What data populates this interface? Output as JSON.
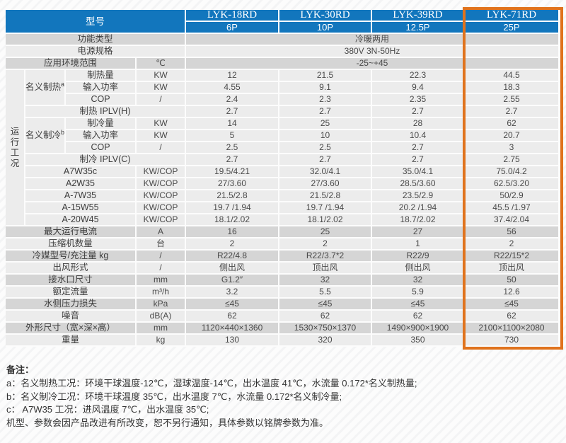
{
  "table": {
    "corner_label": "型号",
    "header_color": "#1276bd",
    "highlight_color": "#e0731d",
    "models": [
      {
        "name": "LYK-18RD",
        "capacity": "6P",
        "highlighted": false
      },
      {
        "name": "LYK-30RD",
        "capacity": "10P",
        "highlighted": false
      },
      {
        "name": "LYK-39RD",
        "capacity": "12.5P",
        "highlighted": false
      },
      {
        "name": "LYK-71RD",
        "capacity": "25P",
        "highlighted": true
      }
    ],
    "general_rows": [
      {
        "label": "功能类型",
        "unit": "",
        "merged_value": "冷暖两用",
        "dark": true
      },
      {
        "label": "电源规格",
        "unit": "",
        "merged_value": "380V 3N-50Hz",
        "dark": false
      },
      {
        "label": "应用环境范围",
        "unit": "℃",
        "merged_value": "-25~+45",
        "dark": true
      }
    ],
    "operating": {
      "group_label": "运行工况",
      "heating": {
        "label": "名义制热",
        "sup": "a",
        "rows": [
          {
            "label": "制热量",
            "unit": "KW",
            "values": [
              "12",
              "21.5",
              "22.3",
              "44.5"
            ]
          },
          {
            "label": "输入功率",
            "unit": "KW",
            "values": [
              "4.55",
              "9.1",
              "9.4",
              "18.3"
            ]
          },
          {
            "label": "COP",
            "unit": "/",
            "values": [
              "2.4",
              "2.3",
              "2.35",
              "2.55"
            ]
          }
        ]
      },
      "heating_iplv": {
        "label": "制热 IPLV(H)",
        "values": [
          "2.7",
          "2.7",
          "2.7",
          "2.7"
        ]
      },
      "cooling": {
        "label": "名义制冷",
        "sup": "b",
        "rows": [
          {
            "label": "制冷量",
            "unit": "KW",
            "values": [
              "14",
              "25",
              "28",
              "62"
            ]
          },
          {
            "label": "输入功率",
            "unit": "KW",
            "values": [
              "5",
              "10",
              "10.4",
              "20.7"
            ]
          },
          {
            "label": "COP",
            "unit": "/",
            "values": [
              "2.5",
              "2.5",
              "2.7",
              "3"
            ]
          }
        ]
      },
      "cooling_iplv": {
        "label": "制冷 IPLV(C)",
        "values": [
          "2.7",
          "2.7",
          "2.7",
          "2.75"
        ]
      },
      "condition_rows": [
        {
          "label": "A7W35c",
          "unit": "KW/COP",
          "values": [
            "19.5/4.21",
            "32.0/4.1",
            "35.0/4.1",
            "75.0/4.2"
          ]
        },
        {
          "label": "A2W35",
          "unit": "KW/COP",
          "values": [
            "27/3.60",
            "27/3.60",
            "28.5/3.60",
            "62.5/3.20"
          ]
        },
        {
          "label": "A-7W35",
          "unit": "KW/COP",
          "values": [
            "21.5/2.8",
            "21.5/2.8",
            "23.5/2.9",
            "50/2.9"
          ]
        },
        {
          "label": "A-15W55",
          "unit": "KW/COP",
          "values": [
            "19.7 /1.94",
            "19.7 /1.94",
            "20.2 /1.94",
            "45.5 /1.97"
          ]
        },
        {
          "label": "A-20W45",
          "unit": "KW/COP",
          "values": [
            "18.1/2.02",
            "18.1/2.02",
            "18.7/2.02",
            "37.4/2.04"
          ]
        }
      ]
    },
    "spec_rows": [
      {
        "label": "最大运行电流",
        "unit": "A",
        "values": [
          "16",
          "25",
          "27",
          "56"
        ],
        "dark": true
      },
      {
        "label": "压缩机数量",
        "unit": "台",
        "values": [
          "2",
          "2",
          "1",
          "2"
        ],
        "dark": false
      },
      {
        "label": "冷媒型号/充注量 kg",
        "unit": "/",
        "values": [
          "R22/4.8",
          "R22/3.7*2",
          "R22/9",
          "R22/15*2"
        ],
        "dark": true
      },
      {
        "label": "出风形式",
        "unit": "/",
        "values": [
          "侧出风",
          "顶出风",
          "侧出风",
          "顶出风"
        ],
        "dark": false
      },
      {
        "label": "接水口尺寸",
        "unit": "mm",
        "values": [
          "G1.2″",
          "32",
          "32",
          "50"
        ],
        "dark": true
      },
      {
        "label": "额定流量",
        "unit": "m³/h",
        "values": [
          "3.2",
          "5.5",
          "5.9",
          "12.6"
        ],
        "dark": false
      },
      {
        "label": "水侧压力损失",
        "unit": "kPa",
        "values": [
          "≤45",
          "≤45",
          "≤45",
          "≤45"
        ],
        "dark": true
      },
      {
        "label": "噪音",
        "unit": "dB(A)",
        "values": [
          "62",
          "62",
          "62",
          "62"
        ],
        "dark": false
      },
      {
        "label": "外形尺寸（宽×深×高）",
        "unit": "mm",
        "values": [
          "1120×440×1360",
          "1530×750×1370",
          "1490×900×1900",
          "2100×1100×2080"
        ],
        "dark": true
      },
      {
        "label": "重量",
        "unit": "kg",
        "values": [
          "130",
          "320",
          "350",
          "730"
        ],
        "dark": false
      }
    ]
  },
  "notes": {
    "title": "备注：",
    "lines": [
      "a：名义制热工况：环境干球温度-12℃，湿球温度-14℃，出水温度 41℃，水流量 0.172*名义制热量;",
      "b：名义制冷工况：环境干球温度 35℃，出水温度 7℃，水流量 0.172*名义制冷量;",
      "c： A7W35 工况：进风温度 7℃，出水温度 35℃;",
      "机型、参数会因产品改进有所改变，恕不另行通知，具体参数以铭牌参数为准。"
    ]
  }
}
